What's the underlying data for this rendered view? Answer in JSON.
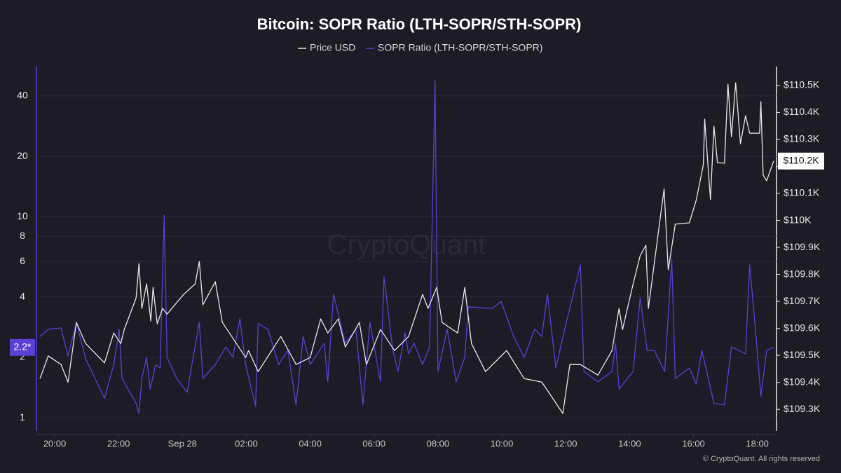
{
  "chart_data": {
    "type": "line",
    "title": "Bitcoin: SOPR Ratio (LTH-SOPR/STH-SOPR)",
    "watermark": "CryptoQuant",
    "footer": "© CryptoQuant. All rights reserved",
    "xlim": [
      -4.57,
      18.6
    ],
    "xticks": [
      {
        "value": -4,
        "label": "20:00"
      },
      {
        "value": -2,
        "label": "22:00"
      },
      {
        "value": 0,
        "label": "Sep 28"
      },
      {
        "value": 2,
        "label": "02:00"
      },
      {
        "value": 4,
        "label": "04:00"
      },
      {
        "value": 6,
        "label": "06:00"
      },
      {
        "value": 8,
        "label": "08:00"
      },
      {
        "value": 10,
        "label": "10:00"
      },
      {
        "value": 12,
        "label": "12:00"
      },
      {
        "value": 14,
        "label": "14:00"
      },
      {
        "value": 16,
        "label": "16:00"
      },
      {
        "value": 18,
        "label": "18:00"
      }
    ],
    "ylim": [
      0.86,
      56
    ],
    "yscale": "log",
    "yticks": [
      1,
      2,
      4,
      6,
      8,
      10,
      20,
      40
    ],
    "y2lim": [
      109220,
      110570
    ],
    "y2ticks": [
      {
        "value": 109300,
        "label": "$109.3K"
      },
      {
        "value": 109400,
        "label": "$109.4K"
      },
      {
        "value": 109500,
        "label": "$109.5K"
      },
      {
        "value": 109600,
        "label": "$109.6K"
      },
      {
        "value": 109700,
        "label": "$109.7K"
      },
      {
        "value": 109800,
        "label": "$109.8K"
      },
      {
        "value": 109900,
        "label": "$109.9K"
      },
      {
        "value": 110000,
        "label": "$110K"
      },
      {
        "value": 110100,
        "label": "$110.1K"
      },
      {
        "value": 110200,
        "label": "$110.2K"
      },
      {
        "value": 110300,
        "label": "$110.3K"
      },
      {
        "value": 110400,
        "label": "$110.4K"
      },
      {
        "value": 110500,
        "label": "$110.5K"
      }
    ],
    "grid": true,
    "series": [
      {
        "name": "Price USD",
        "color": "#e8e8ec",
        "axis": "y2",
        "last_value_label": "$110.2K",
        "x": [
          -4.46,
          -4.2,
          -3.8,
          -3.58,
          -3.32,
          -3.03,
          -2.44,
          -2.15,
          -1.93,
          -1.82,
          -1.45,
          -1.36,
          -1.27,
          -1.12,
          -0.99,
          -0.92,
          -0.79,
          -0.62,
          -0.48,
          0.04,
          0.4,
          0.53,
          0.64,
          1.03,
          1.25,
          1.69,
          1.98,
          2.07,
          2.37,
          3.08,
          3.56,
          4.0,
          4.33,
          4.55,
          4.88,
          5.1,
          5.54,
          5.76,
          6.2,
          6.64,
          7.08,
          7.3,
          7.52,
          7.69,
          7.96,
          8.13,
          8.62,
          8.84,
          9.05,
          9.49,
          10.15,
          10.7,
          11.25,
          11.47,
          11.91,
          12.13,
          12.46,
          13.01,
          13.45,
          13.67,
          13.78,
          14.11,
          14.33,
          14.51,
          14.59,
          14.99,
          15.08,
          15.21,
          15.43,
          15.87,
          16.09,
          16.31,
          16.35,
          16.53,
          16.64,
          16.75,
          16.97,
          17.08,
          17.19,
          17.32,
          17.47,
          17.63,
          17.76,
          18.07,
          18.11,
          18.18,
          18.29,
          18.51
        ],
        "values": [
          109414,
          109498,
          109466,
          109401,
          109622,
          109544,
          109472,
          109583,
          109544,
          109596,
          109713,
          109840,
          109674,
          109765,
          109627,
          109752,
          109617,
          109674,
          109653,
          109726,
          109765,
          109848,
          109687,
          109773,
          109622,
          109544,
          109492,
          109518,
          109440,
          109570,
          109466,
          109492,
          109635,
          109583,
          109635,
          109531,
          109622,
          109466,
          109596,
          109518,
          109570,
          109648,
          109726,
          109674,
          109752,
          109622,
          109583,
          109752,
          109544,
          109440,
          109518,
          109414,
          109401,
          109363,
          109285,
          109466,
          109466,
          109427,
          109518,
          109674,
          109596,
          109765,
          109869,
          109908,
          109674,
          110038,
          110116,
          109817,
          109986,
          109991,
          110077,
          110207,
          110375,
          110077,
          110349,
          110214,
          110212,
          110505,
          110310,
          110510,
          110284,
          110388,
          110323,
          110323,
          110440,
          110168,
          110147,
          110220
        ]
      },
      {
        "name": "SOPR Ratio (LTH-SOPR/STH-SOPR)",
        "color": "#5b3fd6",
        "axis": "y",
        "last_value_label": "2.2*",
        "x": [
          -4.46,
          -4.2,
          -3.8,
          -3.58,
          -3.32,
          -3.03,
          -2.44,
          -2.15,
          -1.98,
          -1.89,
          -1.45,
          -1.36,
          -1.27,
          -1.12,
          -1.01,
          -0.84,
          -0.7,
          -0.57,
          -0.48,
          -0.18,
          0.15,
          0.53,
          0.64,
          1.03,
          1.36,
          1.58,
          1.8,
          1.98,
          2.29,
          2.37,
          2.68,
          3.01,
          3.3,
          3.56,
          3.78,
          4.0,
          4.44,
          4.55,
          4.73,
          5.1,
          5.43,
          5.65,
          5.87,
          6.2,
          6.31,
          6.59,
          6.75,
          6.97,
          7.08,
          7.25,
          7.52,
          7.74,
          7.91,
          8.0,
          8.29,
          8.57,
          8.84,
          8.95,
          9.49,
          9.71,
          9.98,
          10.37,
          10.7,
          11.03,
          11.25,
          11.43,
          11.69,
          12.02,
          12.46,
          12.57,
          13.01,
          13.45,
          13.56,
          13.67,
          14.11,
          14.33,
          14.55,
          14.77,
          15.1,
          15.32,
          15.43,
          15.87,
          16.09,
          16.26,
          16.64,
          16.97,
          17.19,
          17.41,
          17.63,
          17.76,
          17.96,
          18.11,
          18.29,
          18.51
        ],
        "values": [
          2.54,
          2.76,
          2.8,
          2.03,
          2.99,
          1.97,
          1.25,
          1.84,
          2.76,
          1.57,
          1.18,
          1.05,
          1.57,
          2.0,
          1.39,
          1.84,
          1.77,
          10.2,
          2.0,
          1.57,
          1.34,
          2.99,
          1.57,
          1.84,
          2.25,
          2.0,
          3.11,
          1.84,
          1.14,
          2.94,
          2.76,
          1.84,
          2.17,
          1.16,
          2.54,
          1.84,
          2.35,
          1.51,
          4.12,
          2.35,
          2.76,
          1.16,
          2.99,
          1.51,
          5.04,
          2.17,
          1.7,
          2.65,
          2.08,
          2.35,
          1.84,
          2.25,
          47.7,
          1.7,
          2.76,
          1.51,
          2.0,
          3.57,
          3.51,
          3.51,
          3.8,
          2.54,
          2.0,
          2.76,
          2.54,
          4.12,
          1.77,
          2.99,
          5.78,
          1.7,
          1.51,
          1.7,
          2.35,
          1.39,
          1.7,
          3.96,
          2.17,
          2.17,
          1.7,
          6.17,
          1.57,
          1.77,
          1.47,
          2.17,
          1.18,
          1.16,
          2.25,
          2.17,
          2.08,
          5.78,
          2.54,
          1.28,
          2.17,
          2.24
        ]
      }
    ]
  }
}
